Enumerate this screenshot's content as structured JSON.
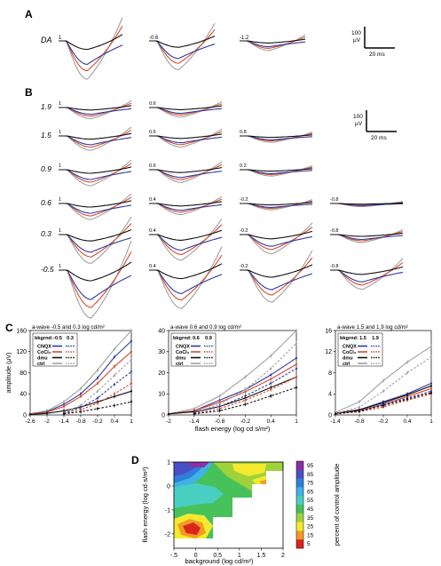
{
  "panels": {
    "A": {
      "label": "A",
      "row_label": "DA",
      "trace_labels": [
        "1",
        "-0.6",
        "-1.2"
      ],
      "scale_bar": {
        "y": "100",
        "y_unit": "µV",
        "x": "20 ms"
      }
    },
    "B": {
      "label": "B",
      "row_labels": [
        "1.9",
        "1.5",
        "0.9",
        "0.6",
        "0.3",
        "-0.5"
      ],
      "trace_labels": [
        [
          "1",
          "0.6",
          ""
        ],
        [
          "1",
          "0.6",
          "0.8"
        ],
        [
          "1",
          "0.6",
          "0.2"
        ],
        [
          "1",
          "0.4",
          "-0.2",
          "-0.8"
        ],
        [
          "1",
          "0.4",
          "-0.2",
          "-0.8"
        ],
        [
          "1",
          "0.4",
          "-0.2",
          "-0.8"
        ]
      ],
      "scale_bar": {
        "y": "100",
        "y_unit": "µV",
        "x": "20 ms"
      }
    },
    "C": {
      "label": "C"
    },
    "D": {
      "label": "D",
      "xlabel": "background (log cd/m²)",
      "ylabel": "flash energy (log cd·s/m²)",
      "colorbar_label": "percent of control amplitude",
      "colorbar_ticks": [
        "95",
        "85",
        "75",
        "65",
        "55",
        "45",
        "35",
        "25",
        "15",
        "5"
      ],
      "colorbar_colors": [
        "#8e2fa2",
        "#4b4fc6",
        "#2f7fd7",
        "#3fb3e6",
        "#49cfc2",
        "#47c15a",
        "#9fd23a",
        "#f3ea2e",
        "#f59a25",
        "#d9261c"
      ]
    }
  },
  "colors": {
    "cnqx": "#2e3aa3",
    "cocl2": "#d94a2b",
    "dmu": "#111111",
    "ctrl": "#a0a0a0"
  },
  "chart_data": [
    {
      "type": "line",
      "title": "a-wave -0.5 and 0.3 log cd/m²",
      "xlabel": "flash energy (log cd s/m²)",
      "ylabel": "amplitude (µV)",
      "x": [
        -2.6,
        -2,
        -1.4,
        -0.8,
        -0.2,
        0.4,
        1
      ],
      "xticks": [
        -2.6,
        -2,
        -1.4,
        -0.8,
        -0.2,
        0.4,
        1
      ],
      "yticks": [
        0,
        40,
        80,
        120,
        160
      ],
      "xlim": [
        -2.6,
        1
      ],
      "ylim": [
        0,
        160
      ],
      "legend": {
        "header": [
          "bkgrnd:",
          "-0.5",
          "0.3"
        ],
        "entries": [
          "CNQX",
          "CoCl₂",
          "dmu",
          "ctrl"
        ]
      },
      "series": [
        {
          "name": "ctrl",
          "bkg": "-0.5",
          "values": [
            2,
            8,
            25,
            50,
            85,
            125,
            160
          ]
        },
        {
          "name": "CNQX",
          "bkg": "-0.5",
          "values": [
            2,
            6,
            20,
            40,
            70,
            110,
            140
          ]
        },
        {
          "name": "CoCl₂",
          "bkg": "-0.5",
          "values": [
            2,
            5,
            16,
            35,
            60,
            92,
            120
          ]
        },
        {
          "name": "dmu",
          "bkg": "-0.5",
          "values": [
            1,
            3,
            8,
            15,
            25,
            35,
            45
          ]
        },
        {
          "name": "ctrl",
          "bkg": "0.3",
          "values": [
            null,
            null,
            5,
            18,
            45,
            75,
            105
          ]
        },
        {
          "name": "CNQX",
          "bkg": "0.3",
          "values": [
            null,
            null,
            4,
            14,
            32,
            58,
            82
          ]
        },
        {
          "name": "CoCl₂",
          "bkg": "0.3",
          "values": [
            null,
            null,
            3,
            10,
            22,
            40,
            60
          ]
        },
        {
          "name": "dmu",
          "bkg": "0.3",
          "values": [
            null,
            null,
            2,
            6,
            12,
            18,
            25
          ]
        }
      ]
    },
    {
      "type": "line",
      "title": "a-wave 0.6 and 0.9 log cd/m²",
      "xlabel": "flash energy (log cd s/m²)",
      "x": [
        -2,
        -1.4,
        -0.8,
        -0.2,
        0.4,
        1
      ],
      "xticks": [
        -2,
        -1.4,
        -0.8,
        -0.2,
        0.4,
        1
      ],
      "yticks": [
        0,
        10,
        20,
        30,
        40
      ],
      "xlim": [
        -2,
        1
      ],
      "ylim": [
        0,
        40
      ],
      "legend": {
        "header": [
          "bkgrnd:",
          "0.6",
          "0.9"
        ],
        "entries": [
          "CNQX",
          "CoCl₂",
          "dmu",
          "ctrl"
        ]
      },
      "series": [
        {
          "name": "ctrl",
          "bkg": "0.6",
          "values": [
            0.5,
            3,
            9,
            18,
            28,
            40
          ]
        },
        {
          "name": "CNQX",
          "bkg": "0.6",
          "values": [
            0.5,
            2,
            7,
            12,
            19,
            27
          ]
        },
        {
          "name": "CoCl₂",
          "bkg": "0.6",
          "values": [
            0.5,
            2,
            6,
            11,
            17,
            24
          ]
        },
        {
          "name": "dmu",
          "bkg": "0.6",
          "values": [
            0.5,
            1.5,
            4,
            8,
            13,
            18
          ]
        },
        {
          "name": "ctrl",
          "bkg": "0.9",
          "values": [
            null,
            1,
            5,
            12,
            22,
            34
          ]
        },
        {
          "name": "CNQX",
          "bkg": "0.9",
          "values": [
            null,
            1,
            4,
            9,
            15,
            22
          ]
        },
        {
          "name": "CoCl₂",
          "bkg": "0.9",
          "values": [
            null,
            0.5,
            3,
            7,
            12,
            18
          ]
        },
        {
          "name": "dmu",
          "bkg": "0.9",
          "values": [
            null,
            0.5,
            2,
            5,
            9,
            13
          ]
        }
      ]
    },
    {
      "type": "line",
      "title": "a-wave 1.5 and 1.9 log cd/m²",
      "xlabel": "",
      "x": [
        -1.4,
        -0.8,
        -0.2,
        0.4,
        1
      ],
      "xticks": [
        -1.4,
        -0.8,
        -0.2,
        0.4,
        1
      ],
      "yticks": [
        0,
        4,
        8,
        12,
        16
      ],
      "xlim": [
        -1.4,
        1
      ],
      "ylim": [
        0,
        16
      ],
      "legend": {
        "header": [
          "bkgrnd:",
          "1.5",
          "1.9"
        ],
        "entries": [
          "CNQX",
          "CoCl₂",
          "dmu",
          "ctrl"
        ]
      },
      "series": [
        {
          "name": "ctrl",
          "bkg": "1.5",
          "values": [
            0.5,
            2.5,
            6.5,
            10,
            13
          ]
        },
        {
          "name": "CNQX",
          "bkg": "1.5",
          "values": [
            0.3,
            1,
            2.5,
            4,
            6
          ]
        },
        {
          "name": "CoCl₂",
          "bkg": "1.5",
          "values": [
            0.3,
            0.8,
            2,
            3.5,
            5
          ]
        },
        {
          "name": "dmu",
          "bkg": "1.5",
          "values": [
            0.3,
            1,
            2.3,
            3.8,
            5.5
          ]
        },
        {
          "name": "ctrl",
          "bkg": "1.9",
          "values": [
            0.3,
            1.5,
            4.5,
            8,
            11
          ]
        },
        {
          "name": "CNQX",
          "bkg": "1.9",
          "values": [
            0.2,
            0.8,
            2,
            3.2,
            4.5
          ]
        },
        {
          "name": "CoCl₂",
          "bkg": "1.9",
          "values": [
            0.2,
            0.6,
            1.5,
            2.8,
            4
          ]
        },
        {
          "name": "dmu",
          "bkg": "1.9",
          "values": [
            0.2,
            0.7,
            1.8,
            3,
            4.2
          ]
        }
      ]
    },
    {
      "type": "heatmap",
      "xlabel": "background (log cd/m²)",
      "ylabel": "flash energy (log cd·s/m²)",
      "xticks": [
        "-.5",
        "0",
        "0.5",
        "1",
        "1.5",
        "2"
      ],
      "yticks": [
        "1",
        "0",
        "-1",
        "-2"
      ],
      "xlim": [
        -0.5,
        2
      ],
      "ylim": [
        -2.6,
        1
      ],
      "colorbar": {
        "label": "percent of control amplitude",
        "ticks": [
          95,
          85,
          75,
          65,
          55,
          45,
          35,
          25,
          15,
          5
        ]
      }
    }
  ]
}
